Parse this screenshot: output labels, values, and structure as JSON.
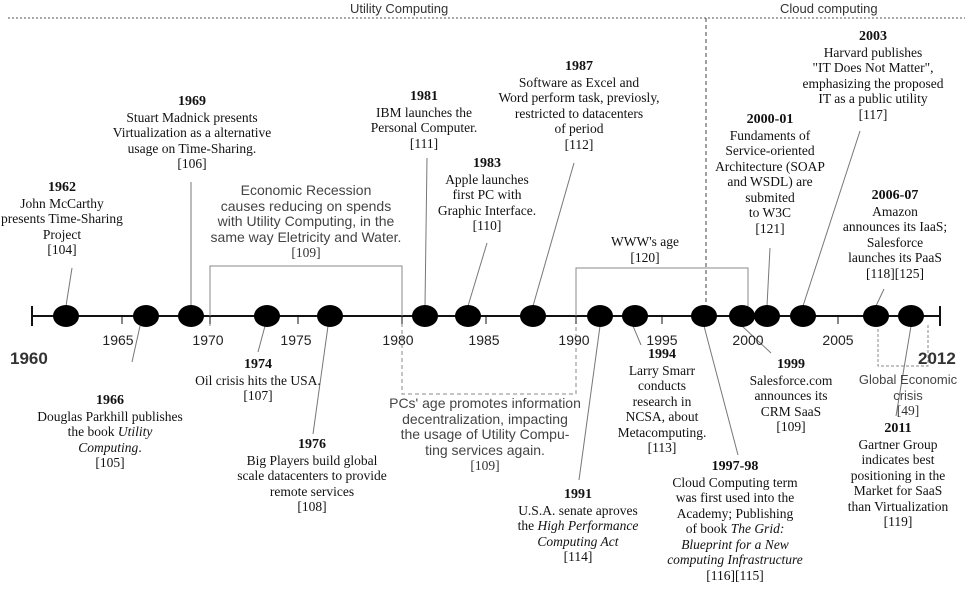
{
  "eras": {
    "utility": "Utility Computing",
    "cloud": "Cloud computing"
  },
  "timeline": {
    "start_year": "1960",
    "end_year": "2012",
    "ticks": [
      "1965",
      "1970",
      "1975",
      "1980",
      "1985",
      "1990",
      "1995",
      "2000",
      "2005"
    ]
  },
  "events": {
    "e1962": {
      "year": "1962",
      "lines": [
        "John McCarthy",
        "presents Time-Sharing",
        "Project"
      ],
      "ref": "[104]"
    },
    "e1966": {
      "year": "1966",
      "lines": [
        "Douglas Parkhill publishes",
        "the book"
      ],
      "italic_a": "Utility",
      "italic_b": "Computing",
      "tail": ".",
      "ref": "[105]"
    },
    "e1969": {
      "year": "1969",
      "lines": [
        "Stuart Madnick presents",
        "Virtualization as a alternative",
        "usage on Time-Sharing."
      ],
      "ref": "[106]"
    },
    "e1974": {
      "year": "1974",
      "lines": [
        "Oil crisis hits the USA."
      ],
      "ref": "[107]"
    },
    "e1976": {
      "year": "1976",
      "lines": [
        "Big Players build global",
        "scale datacenters to provide",
        "remote services"
      ],
      "ref": "[108]"
    },
    "e1981": {
      "year": "1981",
      "lines": [
        "IBM launches the",
        "Personal Computer."
      ],
      "ref": "[111]"
    },
    "e1983": {
      "year": "1983",
      "lines": [
        "Apple launches",
        "first PC with",
        "Graphic Interface."
      ],
      "ref": "[110]"
    },
    "e1987": {
      "year": "1987",
      "lines": [
        "Software as Excel and",
        "Word perform task, previosly,",
        "restricted to datacenters",
        "of period"
      ],
      "ref": "[112]"
    },
    "e1991": {
      "year": "1991",
      "lines": [
        "U.S.A. senate aproves"
      ],
      "prefix": "the ",
      "italic_a": "High Performance",
      "italic_b": "Computing Act",
      "ref": "[114]"
    },
    "e1994": {
      "year": "1994",
      "lines": [
        "Larry Smarr",
        "conducts",
        "research in",
        "NCSA, about",
        "Metacomputing."
      ],
      "ref": "[113]"
    },
    "e1997": {
      "year": "1997-98",
      "lines": [
        "Cloud Computing term",
        "was first used into the",
        "Academy; Publishing"
      ],
      "prefix": "of book ",
      "italic_a": "The Grid:",
      "italic_b": "Blueprint for a New",
      "italic_c": "computing Infrastructure",
      "ref": "[116][115]"
    },
    "e1999": {
      "year": "1999",
      "lines": [
        "Salesforce.com",
        "announces its",
        "CRM SaaS"
      ],
      "ref": "[109]"
    },
    "e2000": {
      "year": "2000-01",
      "lines": [
        "Fundaments of",
        "Service-oriented",
        "Architecture (SOAP",
        "and WSDL)  are",
        "submited",
        "to W3C"
      ],
      "ref": "[121]"
    },
    "e2003": {
      "year": "2003",
      "lines": [
        "Harvard publishes",
        "\"IT Does Not Matter\",",
        "emphasizing the proposed",
        "IT as a public utility"
      ],
      "ref": "[117]"
    },
    "e2006": {
      "year": "2006-07",
      "lines": [
        "Amazon",
        "announces its IaaS;",
        "Salesforce",
        "launches its PaaS"
      ],
      "ref": "[118][125]"
    },
    "e2011": {
      "year": "2011",
      "lines": [
        "Gartner Group",
        "indicates best",
        "positioning in the",
        "Market for SaaS",
        "than Virtualization"
      ],
      "ref": "[119]"
    }
  },
  "periods": {
    "recession": {
      "lines": [
        "Economic Recession",
        "causes reducing on spends",
        "with Utility Computing, in the",
        "same way Eletricity and Water."
      ],
      "ref": "[109]"
    },
    "pcs_age": {
      "lines": [
        "PCs' age promotes information",
        "decentralization, impacting",
        "the usage of Utility Compu-",
        "ting services again."
      ],
      "ref": "[109]"
    },
    "www_age": {
      "lines": [
        "WWW's age"
      ],
      "ref": "[120]"
    },
    "global_crisis": {
      "lines": [
        "Global Economic",
        "crisis"
      ],
      "ref": "[49]"
    }
  }
}
